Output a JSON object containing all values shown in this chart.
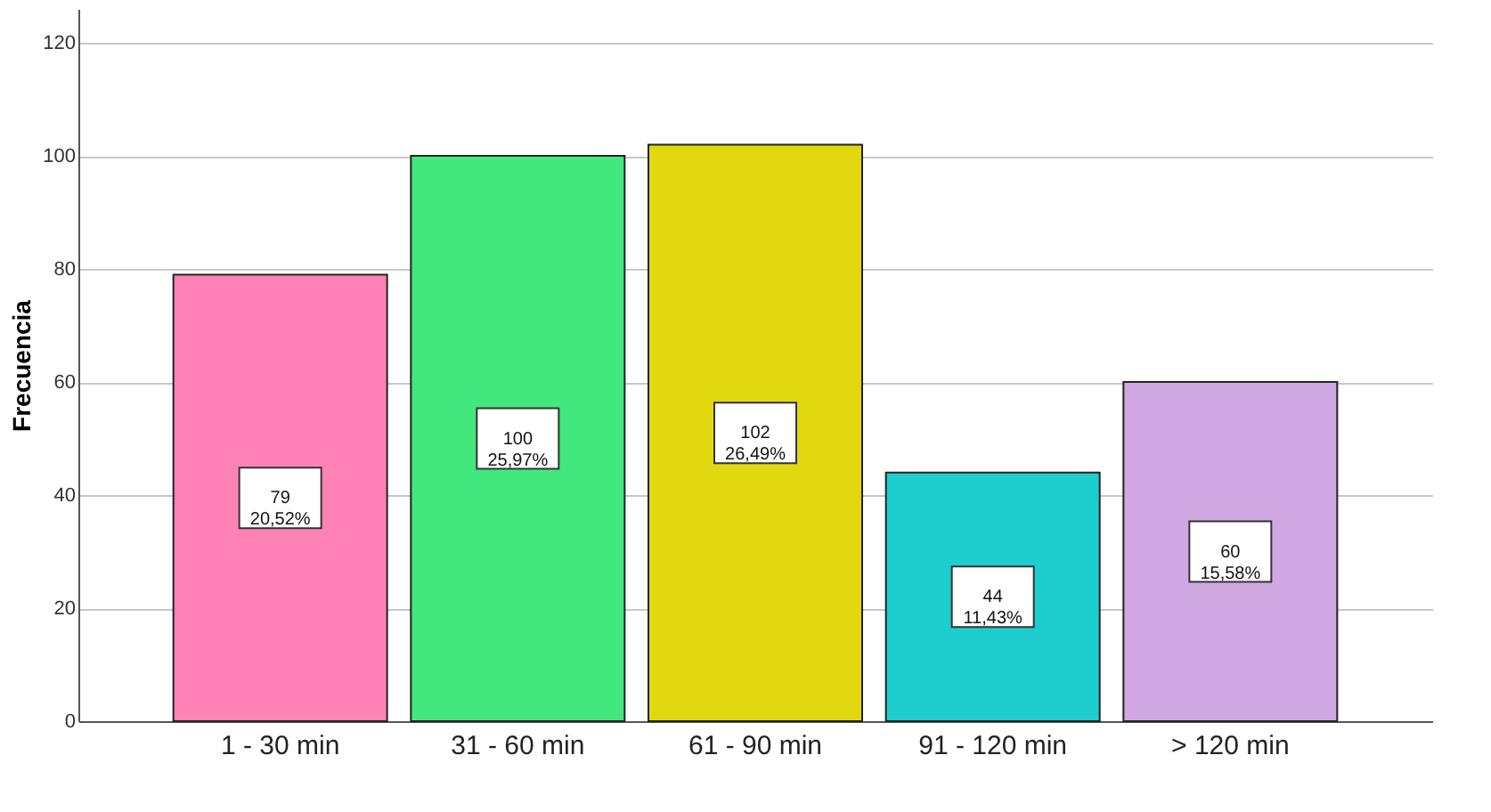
{
  "chart_data": {
    "type": "bar",
    "ylabel": "Frecuencia",
    "categories": [
      "1 - 30 min",
      "31 - 60 min",
      "61 - 90 min",
      "91 - 120 min",
      "> 120 min"
    ],
    "values": [
      79,
      100,
      102,
      44,
      60
    ],
    "colors": [
      "#ff82b4",
      "#42e87e",
      "#e1d80f",
      "#1ecdcd",
      "#d0a9e3"
    ],
    "value_labels": [
      "79\n20,52%",
      "100\n25,97%",
      "102\n26,49%",
      "44\n11,43%",
      "60\n15,58%"
    ],
    "ylim": [
      0,
      126
    ],
    "yticks": [
      0,
      20,
      40,
      60,
      80,
      100,
      120
    ],
    "grid": "y"
  }
}
